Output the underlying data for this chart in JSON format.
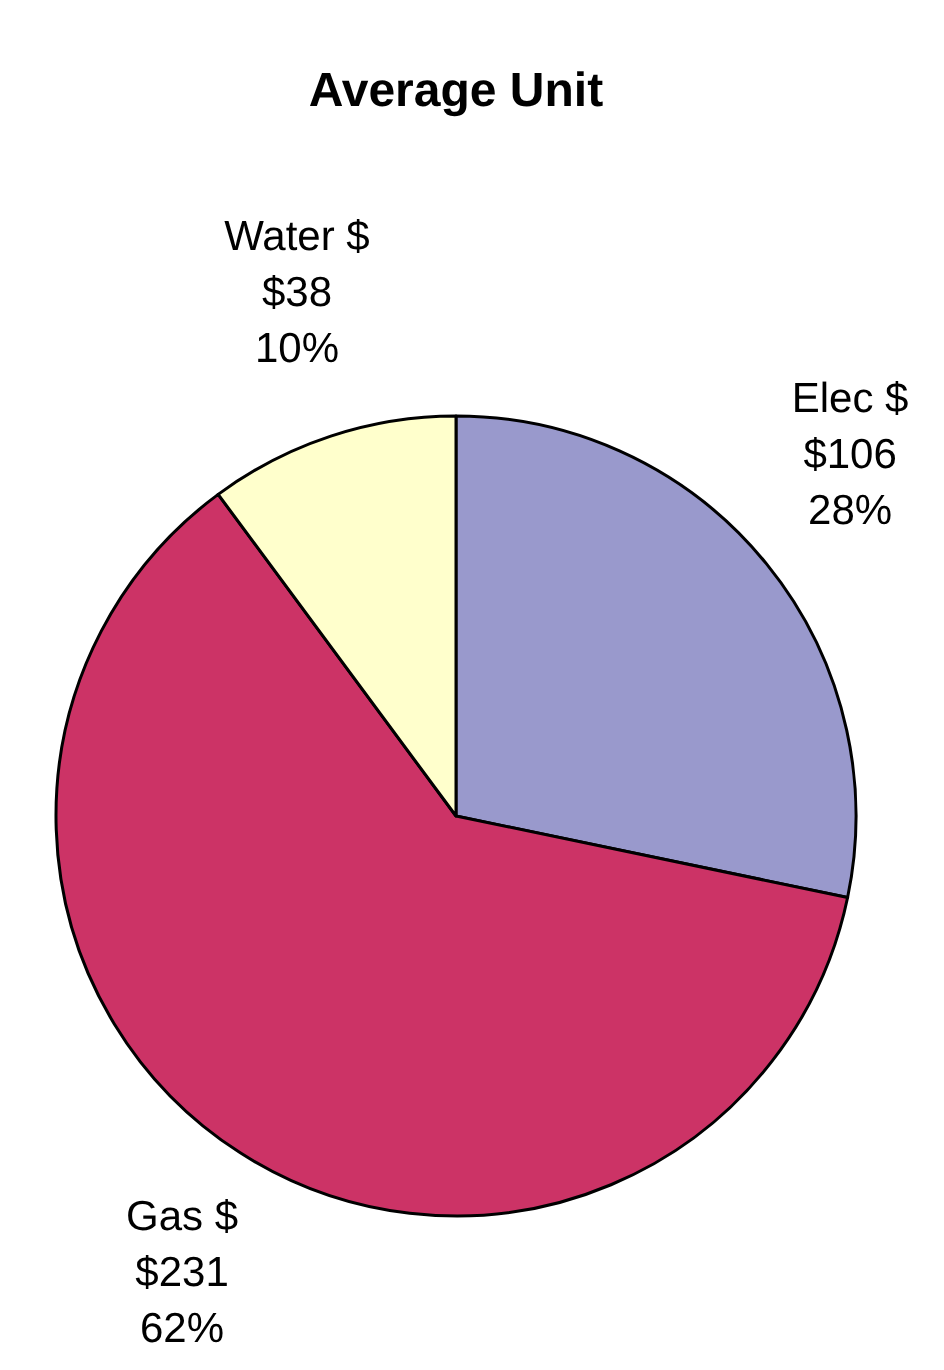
{
  "chart_data": {
    "type": "pie",
    "title": "Average Unit",
    "categories": [
      "Elec $",
      "Gas $",
      "Water $"
    ],
    "values": [
      106,
      231,
      38
    ],
    "colors": [
      "#9999cc",
      "#cc3366",
      "#ffffcc"
    ],
    "value_labels": [
      "$106\n28%",
      "$231\n62%",
      "$38\n10%"
    ]
  }
}
